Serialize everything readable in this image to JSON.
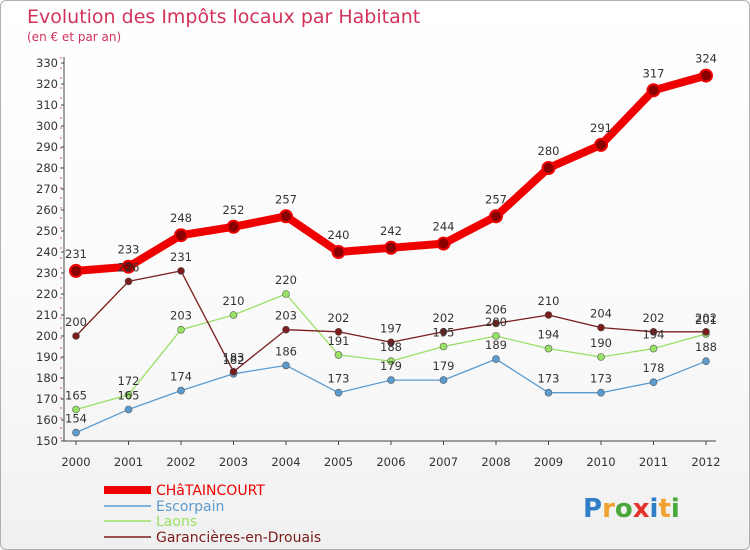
{
  "chart_data": {
    "type": "line",
    "title": "Evolution des Impôts locaux par Habitant",
    "subtitle": "(en € et par an)",
    "categories": [
      "2000",
      "2001",
      "2002",
      "2003",
      "2004",
      "2005",
      "2006",
      "2007",
      "2008",
      "2009",
      "2010",
      "2011",
      "2012"
    ],
    "ylim": [
      150,
      330
    ],
    "yticks": [
      150,
      160,
      170,
      180,
      190,
      200,
      210,
      220,
      230,
      240,
      250,
      260,
      270,
      280,
      290,
      300,
      310,
      320,
      330
    ],
    "grid": false,
    "legend_position": "bottom-left",
    "series": [
      {
        "name": "CHâTAINCOURT",
        "color": "#ee0000",
        "values": [
          231,
          233,
          248,
          252,
          257,
          240,
          242,
          244,
          257,
          280,
          291,
          317,
          324
        ]
      },
      {
        "name": "Escorpain",
        "color": "#5a9bd0",
        "values": [
          154,
          165,
          174,
          182,
          186,
          173,
          179,
          179,
          189,
          173,
          173,
          178,
          188
        ]
      },
      {
        "name": "Laons",
        "color": "#99e066",
        "values": [
          165,
          172,
          203,
          210,
          220,
          191,
          188,
          195,
          200,
          194,
          190,
          194,
          201
        ]
      },
      {
        "name": "Garancières-en-Drouais",
        "color": "#7a1c1c",
        "values": [
          200,
          226,
          231,
          183,
          203,
          202,
          197,
          202,
          206,
          210,
          204,
          202,
          202
        ]
      }
    ],
    "data_labels": [
      {
        "series": 0,
        "labels": [
          "231",
          "233",
          "248",
          "252",
          "257",
          "240",
          "242",
          "244",
          "257",
          "280",
          "291",
          "317",
          "324"
        ]
      },
      {
        "series": 1,
        "labels": [
          "154",
          "165",
          "174",
          "182",
          "186",
          "173",
          "179",
          "179",
          "189",
          "173",
          "173",
          "178",
          "188"
        ]
      },
      {
        "series": 2,
        "labels": [
          "165",
          "172",
          "203",
          "210",
          "220",
          "191",
          "188",
          "195",
          "200",
          "194",
          "190",
          "194",
          "201"
        ]
      },
      {
        "series": 3,
        "labels": [
          "200",
          "226",
          "231",
          "183",
          "203",
          "202",
          "197",
          "202",
          "206",
          "210",
          "204",
          "202",
          "202"
        ]
      }
    ]
  },
  "logo": {
    "text": "Proxiti",
    "letters": [
      {
        "ch": "P",
        "color": "#2f7fc8"
      },
      {
        "ch": "r",
        "color": "#f2a22e"
      },
      {
        "ch": "o",
        "color": "#4aa83a"
      },
      {
        "ch": "x",
        "color": "#e2342a"
      },
      {
        "ch": "i",
        "color": "#2f7fc8"
      },
      {
        "ch": "t",
        "color": "#f2a22e"
      },
      {
        "ch": "i",
        "color": "#4aa83a"
      }
    ]
  }
}
